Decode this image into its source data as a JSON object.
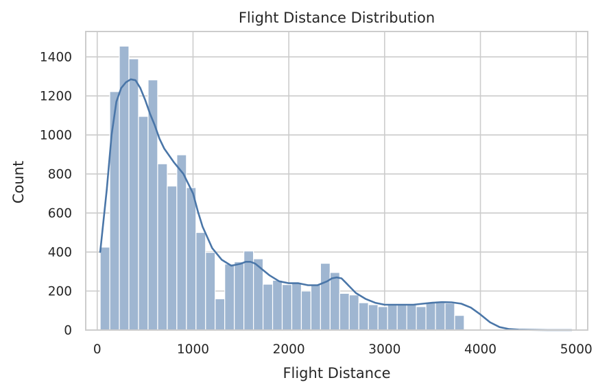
{
  "chart_data": {
    "type": "bar",
    "title": "Flight Distance Distribution",
    "xlabel": "Flight Distance",
    "ylabel": "Count",
    "xlim": [
      -120,
      5120
    ],
    "ylim": [
      0,
      1530
    ],
    "grid": true,
    "x_ticks": [
      0,
      1000,
      2000,
      3000,
      4000,
      5000
    ],
    "y_ticks": [
      0,
      200,
      400,
      600,
      800,
      1000,
      1200,
      1400
    ],
    "bin_width": 100,
    "bin_start": 31,
    "bar_values": [
      425,
      1222,
      1455,
      1390,
      1095,
      1282,
      852,
      738,
      898,
      730,
      500,
      398,
      160,
      338,
      350,
      405,
      365,
      235,
      255,
      233,
      240,
      200,
      230,
      342,
      295,
      188,
      180,
      140,
      130,
      120,
      130,
      130,
      130,
      120,
      140,
      140,
      138,
      75,
      0,
      0,
      0,
      0,
      0,
      0,
      0,
      0,
      0,
      0,
      0,
      0
    ],
    "kde": {
      "x": [
        31,
        100,
        150,
        200,
        250,
        300,
        350,
        400,
        450,
        500,
        550,
        600,
        650,
        700,
        800,
        900,
        1000,
        1050,
        1100,
        1200,
        1300,
        1400,
        1500,
        1550,
        1600,
        1650,
        1700,
        1800,
        1900,
        2000,
        2100,
        2200,
        2300,
        2400,
        2450,
        2500,
        2550,
        2600,
        2700,
        2800,
        2900,
        3000,
        3100,
        3200,
        3300,
        3400,
        3500,
        3600,
        3700,
        3800,
        3900,
        4000,
        4100,
        4200,
        4300,
        4400,
        4500,
        4700,
        4950
      ],
      "y": [
        400,
        720,
        1000,
        1170,
        1240,
        1270,
        1285,
        1280,
        1240,
        1180,
        1110,
        1050,
        980,
        930,
        860,
        800,
        700,
        610,
        530,
        420,
        360,
        330,
        340,
        350,
        350,
        340,
        320,
        280,
        250,
        240,
        240,
        230,
        230,
        250,
        265,
        270,
        265,
        240,
        190,
        160,
        140,
        130,
        130,
        130,
        130,
        135,
        140,
        143,
        142,
        135,
        115,
        80,
        40,
        15,
        5,
        2,
        1,
        0,
        0
      ]
    },
    "bar_color": "#9fb6d1",
    "kde_color": "#4a76a8"
  }
}
